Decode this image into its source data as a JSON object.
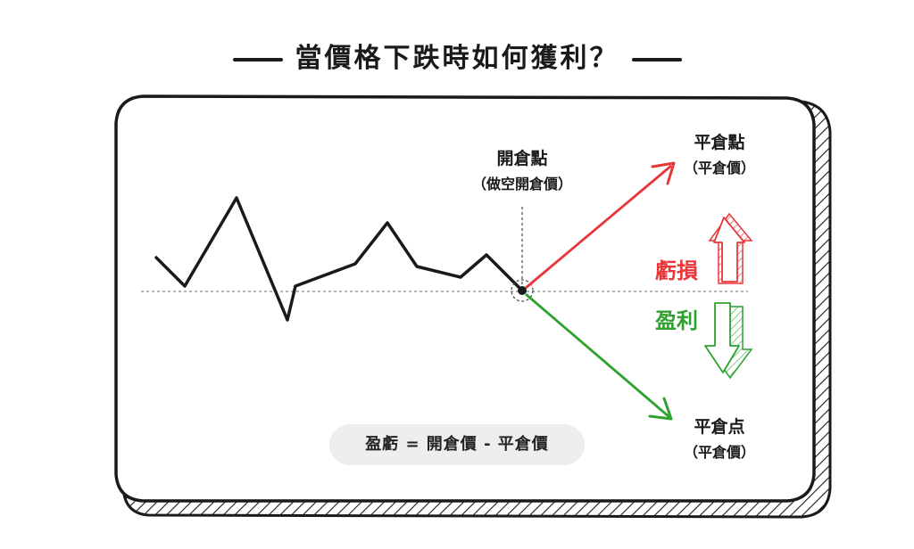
{
  "title": "當價格下跌時如何獲利？",
  "open_point": {
    "label": "開倉點",
    "sublabel": "（做空開倉價）"
  },
  "close_up": {
    "label": "平倉點",
    "sublabel": "（平倉價）"
  },
  "close_down": {
    "label": "平倉点",
    "sublabel": "（平倉價）"
  },
  "loss": {
    "label": "虧損",
    "color": "#e8363a"
  },
  "profit": {
    "label": "盈利",
    "color": "#2ea12e"
  },
  "formula": "盈虧 = 開倉價 - 平倉價",
  "colors": {
    "ink": "#1a1a1a",
    "loss_arrow": "#e8363a",
    "profit_arrow": "#2ea12e",
    "formula_bg": "#eeeeee"
  },
  "icons": [
    "up-hollow-arrow-icon",
    "down-hollow-arrow-icon"
  ]
}
